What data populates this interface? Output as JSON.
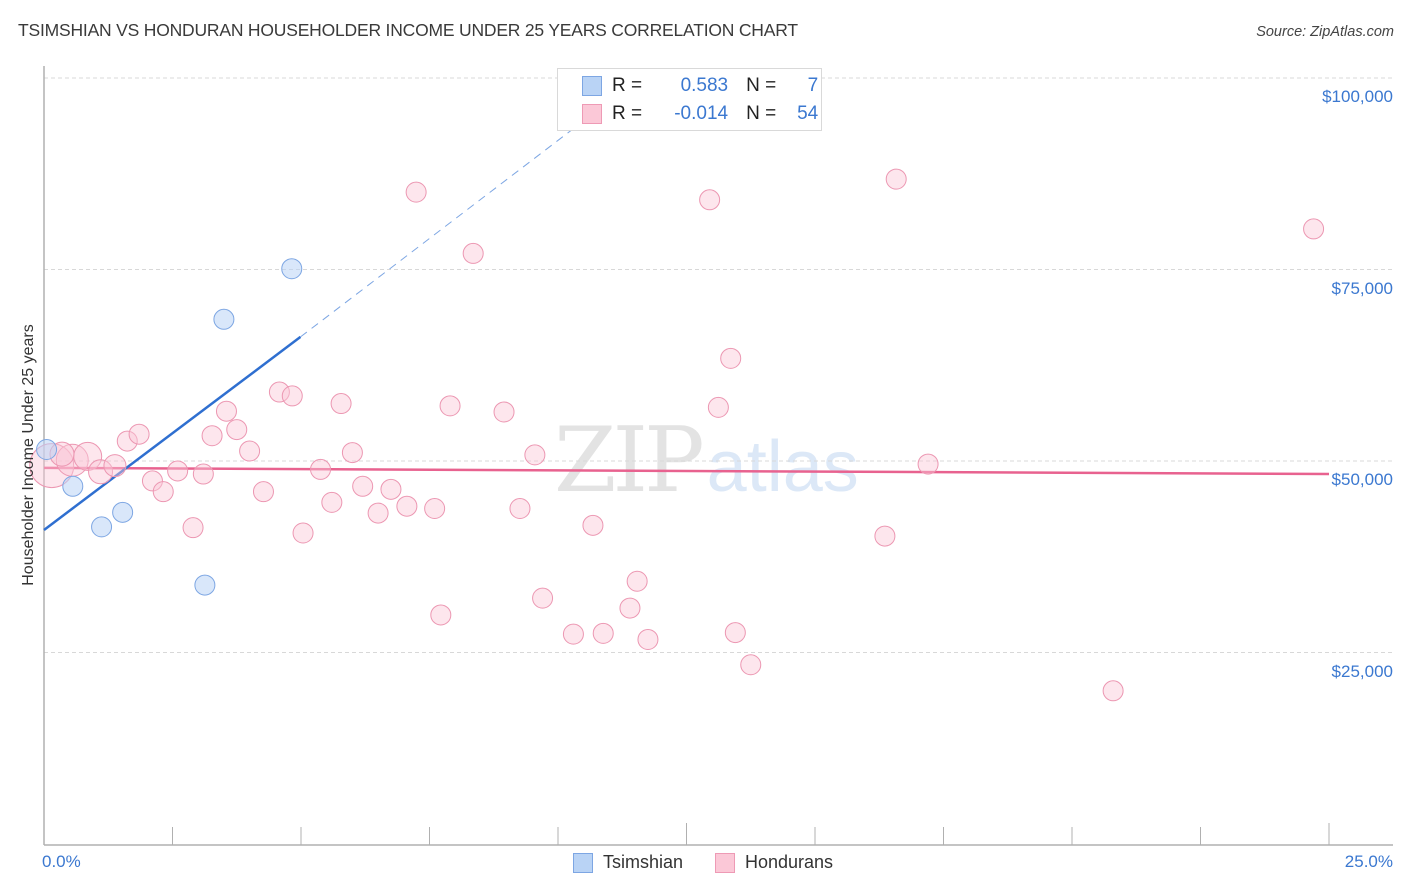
{
  "header": {
    "title": "TSIMSHIAN VS HONDURAN HOUSEHOLDER INCOME UNDER 25 YEARS CORRELATION CHART",
    "source": "Source: ZipAtlas.com"
  },
  "legend": {
    "rows": [
      {
        "series": "Tsimshian",
        "r_label": "R =",
        "r_value": "0.583",
        "n_label": "N =",
        "n_value": "7",
        "swatch_fill": "#b9d3f5",
        "swatch_border": "#7da6e3"
      },
      {
        "series": "Hondurans",
        "r_label": "R =",
        "r_value": "-0.014",
        "n_label": "N =",
        "n_value": "54",
        "swatch_fill": "#fbc8d7",
        "swatch_border": "#ee9ab5"
      }
    ]
  },
  "bottom_legend": {
    "items": [
      {
        "label": "Tsimshian",
        "swatch_fill": "#b9d3f5",
        "swatch_border": "#7da6e3"
      },
      {
        "label": "Hondurans",
        "swatch_fill": "#fbc8d7",
        "swatch_border": "#ee9ab5"
      }
    ]
  },
  "watermark": {
    "zip": "ZIP",
    "atlas": "atlas"
  },
  "colors": {
    "tsimshian_line": "#2f6fd0",
    "hondurans_line": "#e8628f",
    "tick_label": "#3b78d0",
    "grid": "#d8d8d8",
    "axis": "#b0b0b0"
  },
  "chart_data": {
    "type": "scatter",
    "title": "TSIMSHIAN VS HONDURAN HOUSEHOLDER INCOME UNDER 25 YEARS CORRELATION CHART",
    "xlabel": "",
    "ylabel": "Householder Income Under 25 years",
    "xlim": [
      0,
      25
    ],
    "ylim": [
      0,
      101000
    ],
    "x_unit": "%",
    "x_tick_labels": [
      "0.0%",
      "25.0%"
    ],
    "y_ticks": [
      25000,
      50000,
      75000,
      100000
    ],
    "y_tick_labels": [
      "$25,000",
      "$50,000",
      "$75,000",
      "$100,000"
    ],
    "grid": "horizontal dashed",
    "legend_position": "top-center",
    "series": [
      {
        "name": "Tsimshian",
        "R": 0.583,
        "N": 7,
        "points": [
          {
            "x": 0.05,
            "y": 51500,
            "size": 10
          },
          {
            "x": 0.56,
            "y": 46700,
            "size": 10
          },
          {
            "x": 1.12,
            "y": 41400,
            "size": 10
          },
          {
            "x": 1.53,
            "y": 43300,
            "size": 10
          },
          {
            "x": 3.13,
            "y": 33800,
            "size": 10
          },
          {
            "x": 3.5,
            "y": 68500,
            "size": 10
          },
          {
            "x": 4.82,
            "y": 75100,
            "size": 10
          }
        ],
        "trend": {
          "x0": 0,
          "y0": 41000,
          "x1": 4.99,
          "y1": 66200,
          "dashed_extension_to": {
            "x": 11.2,
            "y": 98000
          }
        }
      },
      {
        "name": "Hondurans",
        "R": -0.014,
        "N": 54,
        "points": [
          {
            "x": 0.15,
            "y": 49400,
            "size": 22
          },
          {
            "x": 0.55,
            "y": 50100,
            "size": 16
          },
          {
            "x": 0.85,
            "y": 50600,
            "size": 14
          },
          {
            "x": 1.1,
            "y": 48600,
            "size": 12
          },
          {
            "x": 1.38,
            "y": 49400,
            "size": 11
          },
          {
            "x": 1.62,
            "y": 52600,
            "size": 10
          },
          {
            "x": 1.85,
            "y": 53500,
            "size": 10
          },
          {
            "x": 2.11,
            "y": 47400,
            "size": 10
          },
          {
            "x": 2.32,
            "y": 46000,
            "size": 10
          },
          {
            "x": 2.6,
            "y": 48700,
            "size": 10
          },
          {
            "x": 2.9,
            "y": 41300,
            "size": 10
          },
          {
            "x": 3.1,
            "y": 48300,
            "size": 10
          },
          {
            "x": 3.27,
            "y": 53300,
            "size": 10
          },
          {
            "x": 3.55,
            "y": 56500,
            "size": 10
          },
          {
            "x": 3.75,
            "y": 54100,
            "size": 10
          },
          {
            "x": 4.0,
            "y": 51300,
            "size": 10
          },
          {
            "x": 4.27,
            "y": 46000,
            "size": 10
          },
          {
            "x": 4.58,
            "y": 59000,
            "size": 10
          },
          {
            "x": 4.83,
            "y": 58500,
            "size": 10
          },
          {
            "x": 5.04,
            "y": 40600,
            "size": 10
          },
          {
            "x": 5.38,
            "y": 48900,
            "size": 10
          },
          {
            "x": 5.6,
            "y": 44600,
            "size": 10
          },
          {
            "x": 5.78,
            "y": 57500,
            "size": 10
          },
          {
            "x": 6.0,
            "y": 51100,
            "size": 10
          },
          {
            "x": 6.2,
            "y": 46700,
            "size": 10
          },
          {
            "x": 6.5,
            "y": 43200,
            "size": 10
          },
          {
            "x": 6.75,
            "y": 46300,
            "size": 10
          },
          {
            "x": 7.06,
            "y": 44100,
            "size": 10
          },
          {
            "x": 7.24,
            "y": 85100,
            "size": 10
          },
          {
            "x": 7.6,
            "y": 43800,
            "size": 10
          },
          {
            "x": 7.72,
            "y": 29900,
            "size": 10
          },
          {
            "x": 7.9,
            "y": 57200,
            "size": 10
          },
          {
            "x": 8.35,
            "y": 77100,
            "size": 10
          },
          {
            "x": 8.95,
            "y": 56400,
            "size": 10
          },
          {
            "x": 9.26,
            "y": 43800,
            "size": 10
          },
          {
            "x": 9.55,
            "y": 50800,
            "size": 10
          },
          {
            "x": 9.7,
            "y": 32100,
            "size": 10
          },
          {
            "x": 10.3,
            "y": 27400,
            "size": 10
          },
          {
            "x": 10.68,
            "y": 41600,
            "size": 10
          },
          {
            "x": 10.88,
            "y": 27500,
            "size": 10
          },
          {
            "x": 11.4,
            "y": 30800,
            "size": 10
          },
          {
            "x": 11.54,
            "y": 34300,
            "size": 10
          },
          {
            "x": 11.75,
            "y": 26700,
            "size": 10
          },
          {
            "x": 12.95,
            "y": 84100,
            "size": 10
          },
          {
            "x": 13.12,
            "y": 57000,
            "size": 10
          },
          {
            "x": 13.45,
            "y": 27600,
            "size": 10
          },
          {
            "x": 13.36,
            "y": 63400,
            "size": 10
          },
          {
            "x": 13.75,
            "y": 23400,
            "size": 10
          },
          {
            "x": 16.36,
            "y": 40200,
            "size": 10
          },
          {
            "x": 16.58,
            "y": 86800,
            "size": 10
          },
          {
            "x": 17.2,
            "y": 49600,
            "size": 10
          },
          {
            "x": 20.8,
            "y": 20000,
            "size": 10
          },
          {
            "x": 24.7,
            "y": 80300,
            "size": 10
          },
          {
            "x": 0.35,
            "y": 50900,
            "size": 12
          }
        ],
        "trend": {
          "x0": 0,
          "y0": 49100,
          "x1": 25,
          "y1": 48300
        }
      }
    ]
  }
}
